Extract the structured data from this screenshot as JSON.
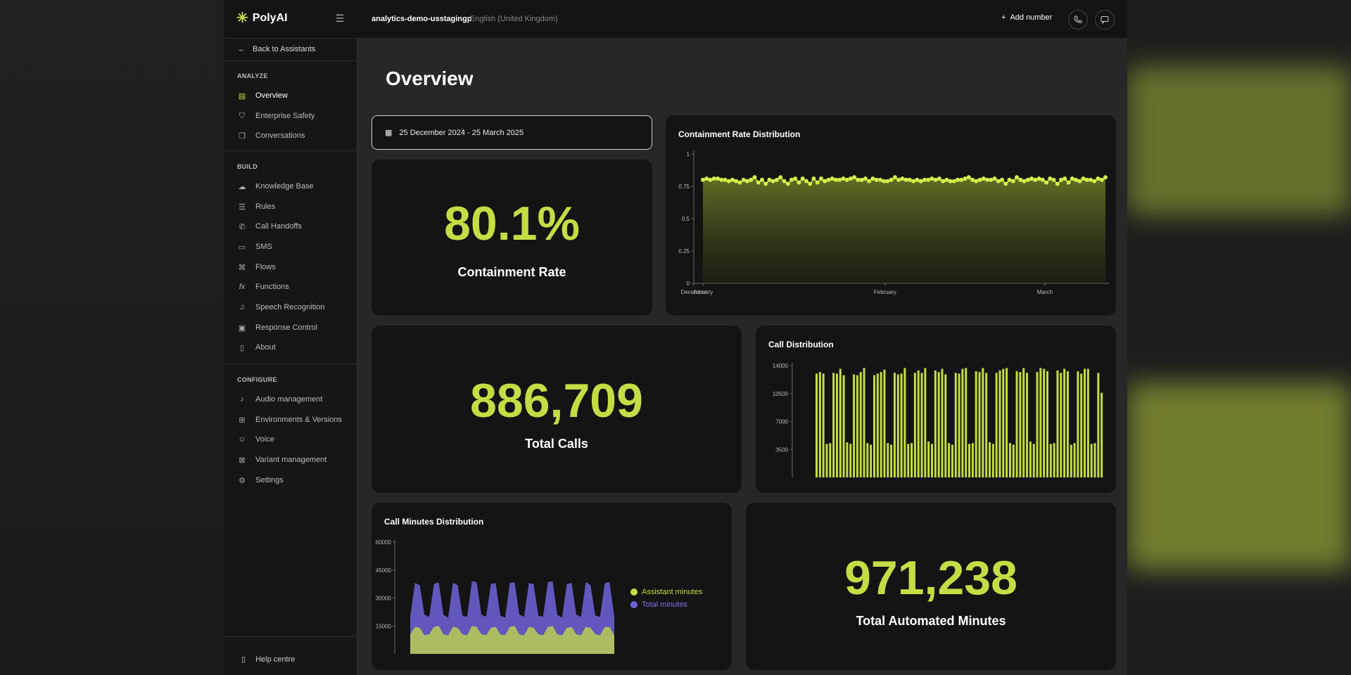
{
  "colors": {
    "accent": "#c5dd45",
    "purple": "#6e63d9",
    "bg": "#141414"
  },
  "topbar": {
    "brand": "PolyAI",
    "project": "analytics-demo-usstagingp",
    "locale": "English (United Kingdom)",
    "add_number": "Add number"
  },
  "sidebar": {
    "back": "Back to Assistants",
    "analyze_title": "ANALYZE",
    "analyze": [
      {
        "label": "Overview",
        "icon": "overview-icon"
      },
      {
        "label": "Enterprise Safety",
        "icon": "shield-icon"
      },
      {
        "label": "Conversations",
        "icon": "conversations-icon"
      }
    ],
    "build_title": "BUILD",
    "build": [
      {
        "label": "Knowledge Base",
        "icon": "brain-icon"
      },
      {
        "label": "Rules",
        "icon": "rules-icon"
      },
      {
        "label": "Call Handoffs",
        "icon": "phone-forward-icon"
      },
      {
        "label": "SMS",
        "icon": "sms-icon"
      },
      {
        "label": "Flows",
        "icon": "flows-icon"
      },
      {
        "label": "Functions",
        "icon": "function-icon"
      },
      {
        "label": "Speech Recognition",
        "icon": "speech-icon"
      },
      {
        "label": "Response Control",
        "icon": "response-icon"
      },
      {
        "label": "About",
        "icon": "about-icon"
      }
    ],
    "configure_title": "CONFIGURE",
    "configure": [
      {
        "label": "Audio management",
        "icon": "microphone-icon"
      },
      {
        "label": "Environments & Versions",
        "icon": "environments-icon"
      },
      {
        "label": "Voice",
        "icon": "voice-icon"
      },
      {
        "label": "Variant management",
        "icon": "variant-icon"
      },
      {
        "label": "Settings",
        "icon": "settings-icon"
      }
    ],
    "help": "Help centre"
  },
  "main": {
    "title": "Overview",
    "date_range": "25 December 2024 - 25 March 2025",
    "containment": {
      "value": "80.1%",
      "label": "Containment Rate"
    },
    "total_calls": {
      "value": "886,709",
      "label": "Total Calls"
    },
    "automated_minutes": {
      "value": "971,238",
      "label": "Total Automated Minutes"
    }
  },
  "chart_data": [
    {
      "type": "area",
      "title": "Containment Rate Distribution",
      "x_ticks": [
        "December",
        "January",
        "February",
        "March"
      ],
      "y_ticks": [
        "0",
        "0.25",
        "0.5",
        "0.75",
        "1"
      ],
      "ylim": [
        0,
        1
      ],
      "values": [
        0.8,
        0.81,
        0.8,
        0.81,
        0.81,
        0.8,
        0.8,
        0.79,
        0.8,
        0.79,
        0.78,
        0.8,
        0.79,
        0.8,
        0.82,
        0.78,
        0.8,
        0.77,
        0.8,
        0.79,
        0.8,
        0.82,
        0.79,
        0.77,
        0.8,
        0.81,
        0.78,
        0.81,
        0.79,
        0.77,
        0.81,
        0.78,
        0.81,
        0.79,
        0.8,
        0.81,
        0.8,
        0.8,
        0.81,
        0.8,
        0.81,
        0.82,
        0.8,
        0.8,
        0.81,
        0.79,
        0.81,
        0.8,
        0.8,
        0.79,
        0.79,
        0.8,
        0.82,
        0.8,
        0.81,
        0.8,
        0.8,
        0.79,
        0.8,
        0.79,
        0.8,
        0.8,
        0.81,
        0.8,
        0.81,
        0.79,
        0.8,
        0.79,
        0.79,
        0.8,
        0.8,
        0.81,
        0.82,
        0.8,
        0.79,
        0.8,
        0.81,
        0.8,
        0.8,
        0.81,
        0.79,
        0.8,
        0.77,
        0.8,
        0.79,
        0.82,
        0.8,
        0.79,
        0.8,
        0.81,
        0.8,
        0.81,
        0.8,
        0.78,
        0.81,
        0.8,
        0.77,
        0.8,
        0.81,
        0.78,
        0.81,
        0.8,
        0.79,
        0.81,
        0.8,
        0.8,
        0.79,
        0.81,
        0.8,
        0.82
      ]
    },
    {
      "type": "bar",
      "title": "Call Distribution",
      "y_ticks": [
        "3500",
        "7000",
        "10500",
        "14000"
      ],
      "ylim": [
        0,
        14000
      ],
      "values": [
        13000,
        13200,
        13000,
        4200,
        4300,
        13100,
        13000,
        13600,
        12800,
        4400,
        4200,
        12900,
        12800,
        13200,
        13700,
        4300,
        4100,
        12800,
        13000,
        13200,
        13500,
        4300,
        4100,
        13100,
        12900,
        13000,
        13700,
        4200,
        4300,
        13100,
        13400,
        13100,
        13700,
        4500,
        4200,
        13400,
        13200,
        13600,
        12900,
        4300,
        4100,
        13100,
        13000,
        13600,
        13700,
        4200,
        4300,
        13300,
        13200,
        13700,
        13100,
        4400,
        4200,
        13100,
        13400,
        13600,
        13700,
        4300,
        4100,
        13300,
        13200,
        13700,
        13100,
        4500,
        4200,
        13200,
        13700,
        13600,
        13300,
        4200,
        4300,
        13400,
        13100,
        13600,
        13300,
        4100,
        4300,
        13300,
        13000,
        13600,
        13600,
        4200,
        4300,
        13100,
        10600
      ]
    },
    {
      "type": "area",
      "title": "Call Minutes Distribution",
      "y_ticks": [
        "15000",
        "30000",
        "45000",
        "60000"
      ],
      "ylim": [
        0,
        60000
      ],
      "series": [
        {
          "name": "Total minutes",
          "color": "#6e63d9",
          "values": [
            20000,
            38000,
            37000,
            21000,
            20000,
            37500,
            38500,
            21000,
            19500,
            38000,
            37000,
            20500,
            20000,
            39000,
            38500,
            21000,
            20000,
            37500,
            38000,
            20500,
            19500,
            38000,
            38500,
            21000,
            20000,
            38000,
            37500,
            20500,
            20000,
            38500,
            39000,
            21000,
            19500,
            37500,
            38000,
            21000,
            20000,
            38500,
            37000,
            20500,
            20000,
            38000,
            38500,
            20000
          ]
        },
        {
          "name": "Assistant minutes",
          "color": "#c5dd45",
          "values": [
            10500,
            14500,
            14000,
            10000,
            10500,
            14500,
            15000,
            10500,
            10000,
            14500,
            14000,
            10500,
            10000,
            15000,
            14500,
            10500,
            10000,
            14000,
            14500,
            10500,
            10000,
            14500,
            15000,
            10500,
            10000,
            14500,
            14000,
            10500,
            10000,
            14500,
            15000,
            10500,
            10000,
            14000,
            14500,
            10500,
            10000,
            14500,
            14000,
            10500,
            10000,
            14500,
            14500,
            10000
          ]
        }
      ]
    }
  ]
}
